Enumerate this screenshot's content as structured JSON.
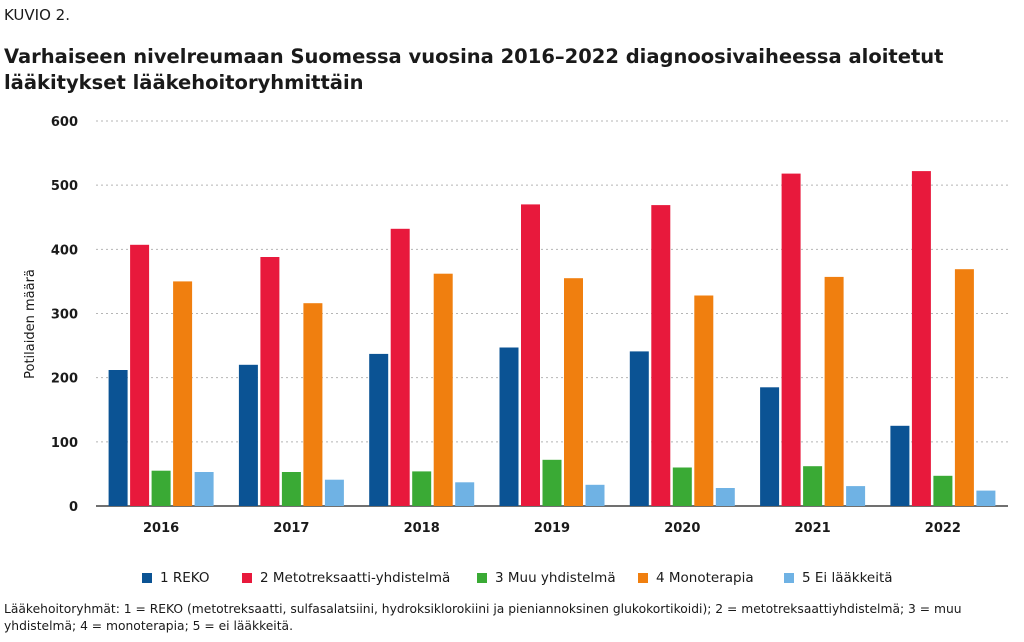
{
  "figure_label": "KUVIO 2.",
  "title": "Varhaiseen nivelreumaan Suomessa vuosina 2016–2022 diagnoosivaiheessa aloitetut lääkitykset lääkehoitoryhmittäin",
  "footnote": "Lääkehoitoryhmät: 1 = REKO (metotreksaatti, sulfasalatsiini, hydroksiklorokiini ja pieniannoksinen glukokortikoidi); 2 = metotreksaattiyhdistelmä; 3 = muu yhdistelmä; 4 = monoterapia; 5 = ei lääkkeitä.",
  "chart_data": {
    "type": "bar",
    "title": "Varhaiseen nivelreumaan Suomessa vuosina 2016–2022 diagnoosivaiheessa aloitetut lääkitykset lääkehoitoryhmittäin",
    "xlabel": "",
    "ylabel": "Potilaiden määrä",
    "ylim": [
      0,
      600
    ],
    "yticks": [
      0,
      100,
      200,
      300,
      400,
      500,
      600
    ],
    "grid": true,
    "legend_position": "bottom",
    "categories": [
      "2016",
      "2017",
      "2018",
      "2019",
      "2020",
      "2021",
      "2022"
    ],
    "series": [
      {
        "name": "1 REKO",
        "color": "#0b5394",
        "values": [
          212,
          220,
          237,
          247,
          241,
          185,
          125
        ]
      },
      {
        "name": "2 Metotreksaatti-yhdistelmä",
        "color": "#e8193c",
        "values": [
          407,
          388,
          432,
          470,
          469,
          518,
          522
        ]
      },
      {
        "name": "3 Muu yhdistelmä",
        "color": "#3aaa35",
        "values": [
          55,
          53,
          54,
          72,
          60,
          62,
          47
        ]
      },
      {
        "name": "4 Monoterapia",
        "color": "#f07f0f",
        "values": [
          350,
          316,
          362,
          355,
          328,
          357,
          369
        ]
      },
      {
        "name": "5 Ei lääkkeitä",
        "color": "#6fb2e4",
        "values": [
          53,
          41,
          37,
          33,
          28,
          31,
          24
        ]
      }
    ]
  }
}
